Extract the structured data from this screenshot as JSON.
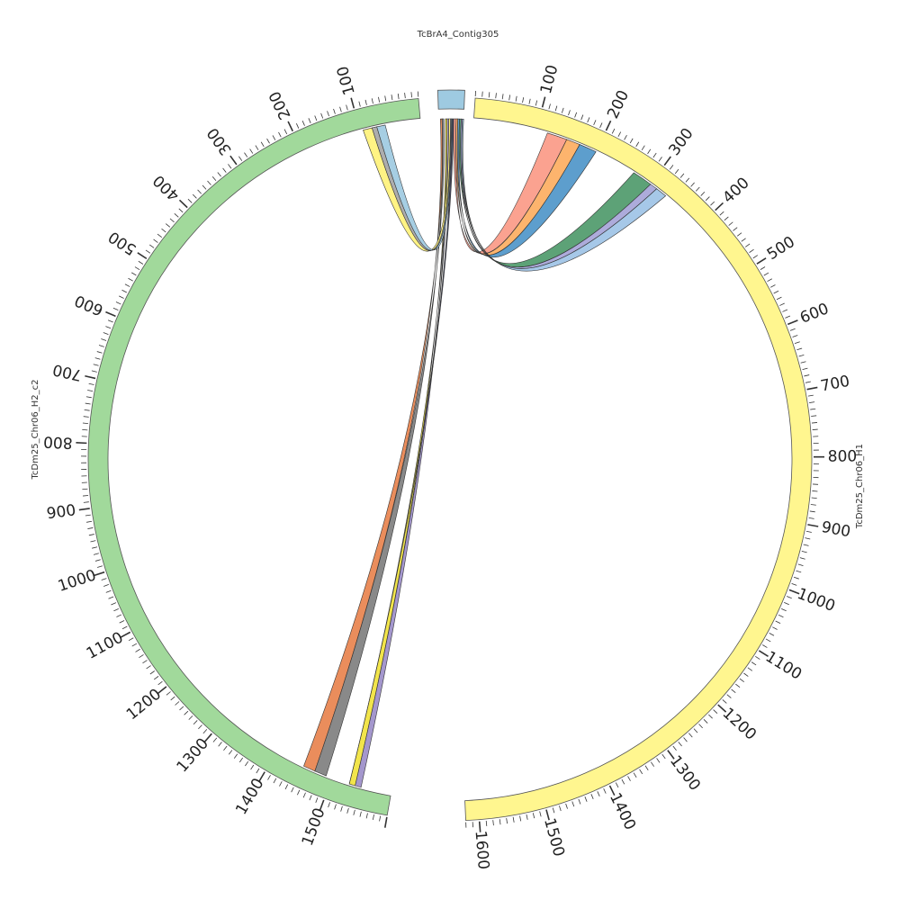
{
  "chromosomes": [
    {
      "id": "h1",
      "name": "TcDm25_Chr06_H1",
      "length": 1620,
      "color": "#fff68f"
    },
    {
      "id": "h2",
      "name": "TcDm25_Chr06_H2_c2",
      "length": 1600,
      "color": "#a1d99b"
    },
    {
      "id": "contig",
      "name": "TcBrA4_Contig305",
      "length": 30,
      "color": "#9ecae1"
    }
  ],
  "tick_labels": {
    "h1": [
      "100",
      "200",
      "300",
      "400",
      "500",
      "600",
      "700",
      "800",
      "900",
      "1000",
      "1100",
      "1200",
      "1300",
      "1400",
      "1500",
      "1600"
    ],
    "h2": [
      "100",
      "200",
      "300",
      "400",
      "500",
      "600",
      "700",
      "800",
      "900",
      "1000",
      "1100",
      "1200",
      "1300",
      "1400",
      "1500"
    ]
  },
  "links": [
    {
      "color": "#fb9a87",
      "from": [
        "contig",
        18,
        21
      ],
      "to": [
        "h1",
        118,
        150
      ]
    },
    {
      "color": "#fdae61",
      "from": [
        "contig",
        21,
        23
      ],
      "to": [
        "h1",
        150,
        172
      ]
    },
    {
      "color": "#4f96c9",
      "from": [
        "contig",
        23,
        25
      ],
      "to": [
        "h1",
        172,
        200
      ]
    },
    {
      "color": "#4f9a6b",
      "from": [
        "contig",
        25,
        27
      ],
      "to": [
        "h1",
        268,
        300
      ]
    },
    {
      "color": "#a6a4d8",
      "from": [
        "contig",
        27,
        28.5
      ],
      "to": [
        "h1",
        300,
        312
      ]
    },
    {
      "color": "#9ec3e6",
      "from": [
        "contig",
        28.5,
        30
      ],
      "to": [
        "h1",
        312,
        330
      ]
    },
    {
      "color": "#e8834e",
      "from": [
        "contig",
        2,
        4
      ],
      "to": [
        "h2",
        1450,
        1470
      ]
    },
    {
      "color": "#7f7f7f",
      "from": [
        "contig",
        4,
        6
      ],
      "to": [
        "h2",
        1470,
        1490
      ]
    },
    {
      "color": "#f1e33c",
      "from": [
        "contig",
        8,
        10
      ],
      "to": [
        "h2",
        1530,
        1540
      ]
    },
    {
      "color": "#9c8ec9",
      "from": [
        "contig",
        10,
        12
      ],
      "to": [
        "h2",
        1540,
        1550
      ]
    },
    {
      "color": "#fff27a",
      "from": [
        "contig",
        12,
        14
      ],
      "to": [
        "h2",
        80,
        95
      ]
    },
    {
      "color": "#a6a6a6",
      "from": [
        "contig",
        14,
        15
      ],
      "to": [
        "h2",
        72,
        80
      ]
    },
    {
      "color": "#9ecae1",
      "from": [
        "contig",
        15,
        16
      ],
      "to": [
        "h2",
        58,
        72
      ]
    },
    {
      "color": "#3a3f5c",
      "from": [
        "contig",
        16,
        18
      ],
      "to": [
        "h2",
        1530,
        1530
      ]
    }
  ]
}
